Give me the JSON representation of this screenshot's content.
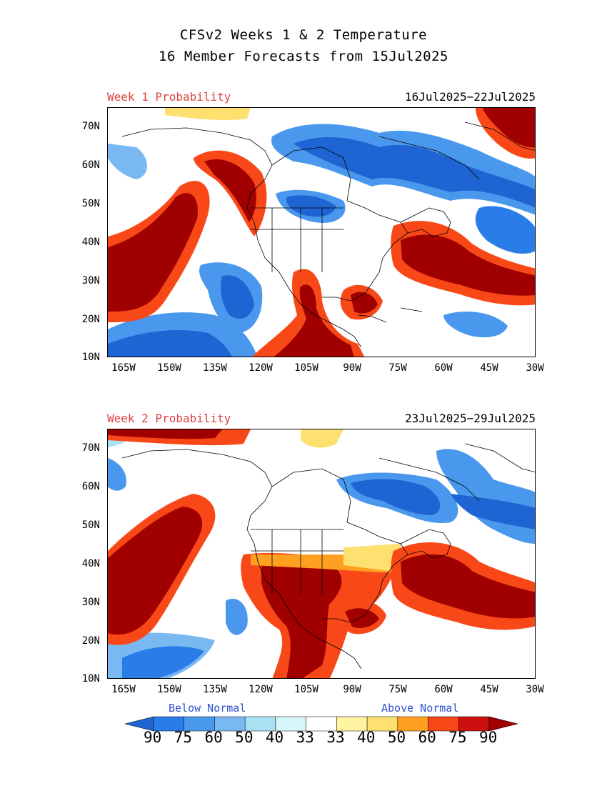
{
  "title_line1": "CFSv2 Weeks 1 & 2 Temperature",
  "title_line2": "16 Member Forecasts from 15Jul2025",
  "panels": [
    {
      "label": "Week 1 Probability",
      "dates": "16Jul2025−22Jul2025"
    },
    {
      "label": "Week 2 Probability",
      "dates": "23Jul2025−29Jul2025"
    }
  ],
  "lat_ticks": [
    "70N",
    "60N",
    "50N",
    "40N",
    "30N",
    "20N",
    "10N"
  ],
  "lon_ticks": [
    "165W",
    "150W",
    "135W",
    "120W",
    "105W",
    "90W",
    "75W",
    "60W",
    "45W",
    "30W"
  ],
  "legend": {
    "below": "Below Normal",
    "above": "Above Normal",
    "values": [
      "90",
      "75",
      "60",
      "50",
      "40",
      "33",
      "33",
      "40",
      "50",
      "60",
      "75",
      "90"
    ],
    "colors": [
      "#1e64d2",
      "#2a7de8",
      "#4a98ee",
      "#7ab8f2",
      "#a8e0f4",
      "#d8f6fa",
      "#ffffff",
      "#fff5a0",
      "#fde070",
      "#ffa020",
      "#f84818",
      "#cc1010",
      "#a00000"
    ]
  }
}
